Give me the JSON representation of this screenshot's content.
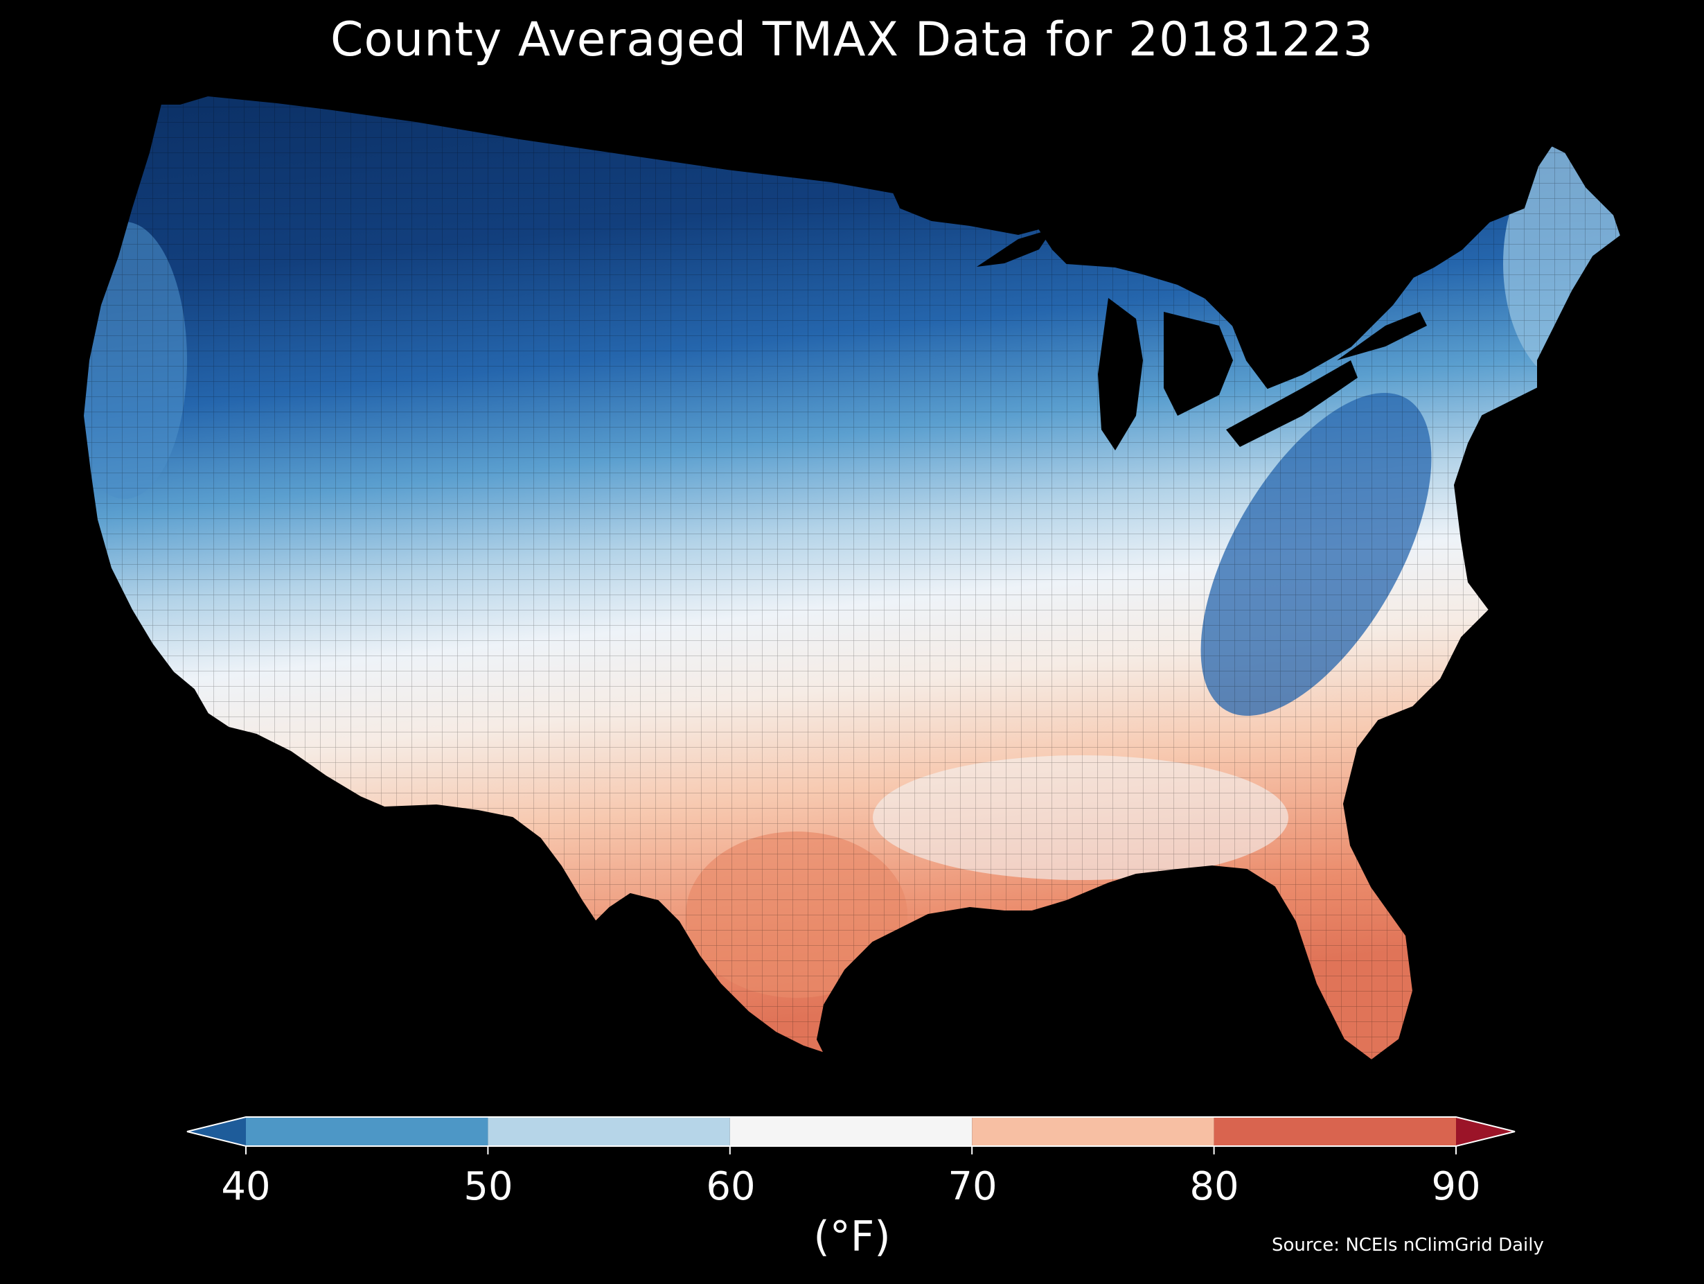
{
  "title": "County Averaged TMAX Data for 20181223",
  "colorbar": {
    "ticks": [
      "40",
      "50",
      "60",
      "70",
      "80",
      "90"
    ],
    "bins": [
      {
        "range": "<40",
        "color": "#1e5c9a"
      },
      {
        "range": "40-50",
        "color": "#4d97c6"
      },
      {
        "range": "50-60",
        "color": "#b6d5e8"
      },
      {
        "range": "60-70",
        "color": "#f5f5f5"
      },
      {
        "range": "70-80",
        "color": "#f7bfa3"
      },
      {
        "range": "80-90",
        "color": "#d9644f"
      },
      {
        "range": ">90",
        "color": "#9b1428"
      }
    ],
    "unit": "(°F)"
  },
  "source": "Source: NCEIs nClimGrid Daily"
}
